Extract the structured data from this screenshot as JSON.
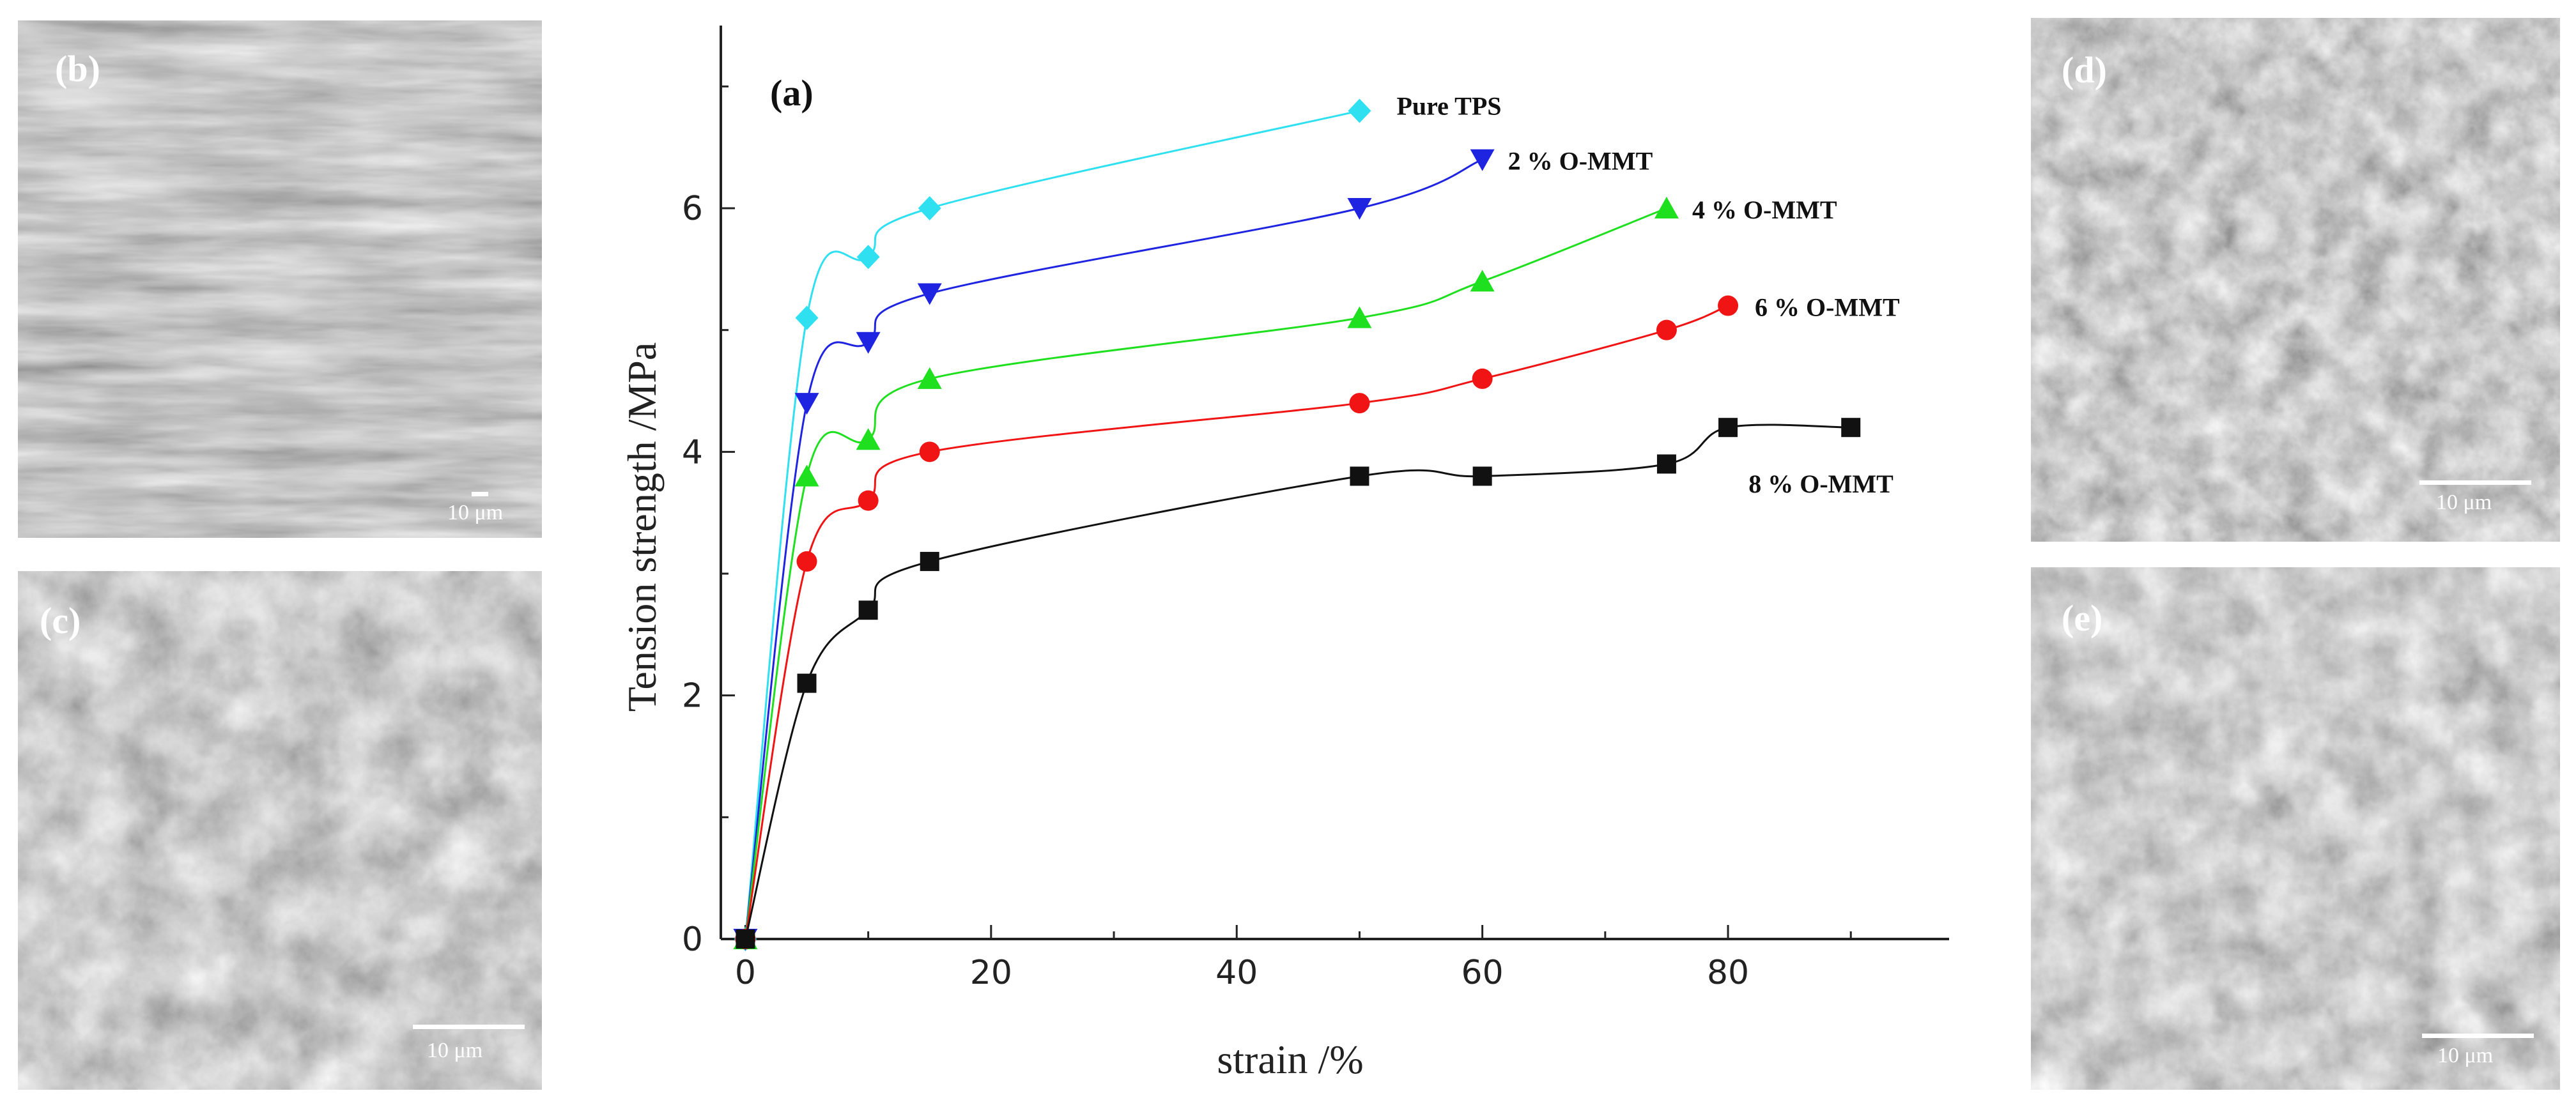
{
  "panels": {
    "b": {
      "letter": "(b)",
      "scale": "10 μm"
    },
    "c": {
      "letter": "(c)",
      "scale": "10 μm"
    },
    "d": {
      "letter": "(d)",
      "scale": "10 μm"
    },
    "e": {
      "letter": "(e)",
      "scale": "10 μm"
    }
  },
  "chart_data": {
    "type": "line",
    "panel_label": "(a)",
    "title": "",
    "xlabel": "strain /%",
    "ylabel": "Tension strength /MPa",
    "xlim": [
      -2,
      98
    ],
    "ylim": [
      0,
      7.5
    ],
    "xticks": [
      0,
      20,
      40,
      60,
      80
    ],
    "yticks": [
      0,
      2,
      4,
      6
    ],
    "grid": false,
    "series": [
      {
        "name": "Pure TPS",
        "label": "Pure TPS",
        "color": "#2fe0f0",
        "marker": "diamond",
        "x": [
          0,
          5,
          10,
          15,
          50
        ],
        "y": [
          0,
          5.1,
          5.6,
          6.0,
          6.8
        ]
      },
      {
        "name": "2 % O-MMT",
        "label": "2 % O-MMT",
        "color": "#1f24e0",
        "marker": "triangle-down",
        "x": [
          0,
          5,
          10,
          15,
          50,
          60
        ],
        "y": [
          0,
          4.4,
          4.9,
          5.3,
          6.0,
          6.4
        ]
      },
      {
        "name": "4 % O-MMT",
        "label": "4 % O-MMT",
        "color": "#1fe01f",
        "marker": "triangle-up",
        "x": [
          0,
          5,
          10,
          15,
          50,
          60,
          75
        ],
        "y": [
          0,
          3.8,
          4.1,
          4.6,
          5.1,
          5.4,
          6.0
        ]
      },
      {
        "name": "6 % O-MMT",
        "label": "6 % O-MMT",
        "color": "#f01414",
        "marker": "circle",
        "x": [
          0,
          5,
          10,
          15,
          50,
          60,
          75,
          80
        ],
        "y": [
          0,
          3.1,
          3.6,
          4.0,
          4.4,
          4.6,
          5.0,
          5.2
        ]
      },
      {
        "name": "8 % O-MMT",
        "label": "8 % O-MMT",
        "color": "#111111",
        "marker": "square",
        "x": [
          0,
          5,
          10,
          15,
          50,
          60,
          75,
          80,
          90
        ],
        "y": [
          0,
          2.1,
          2.7,
          3.1,
          3.8,
          3.8,
          3.9,
          4.2,
          4.2
        ]
      }
    ]
  }
}
